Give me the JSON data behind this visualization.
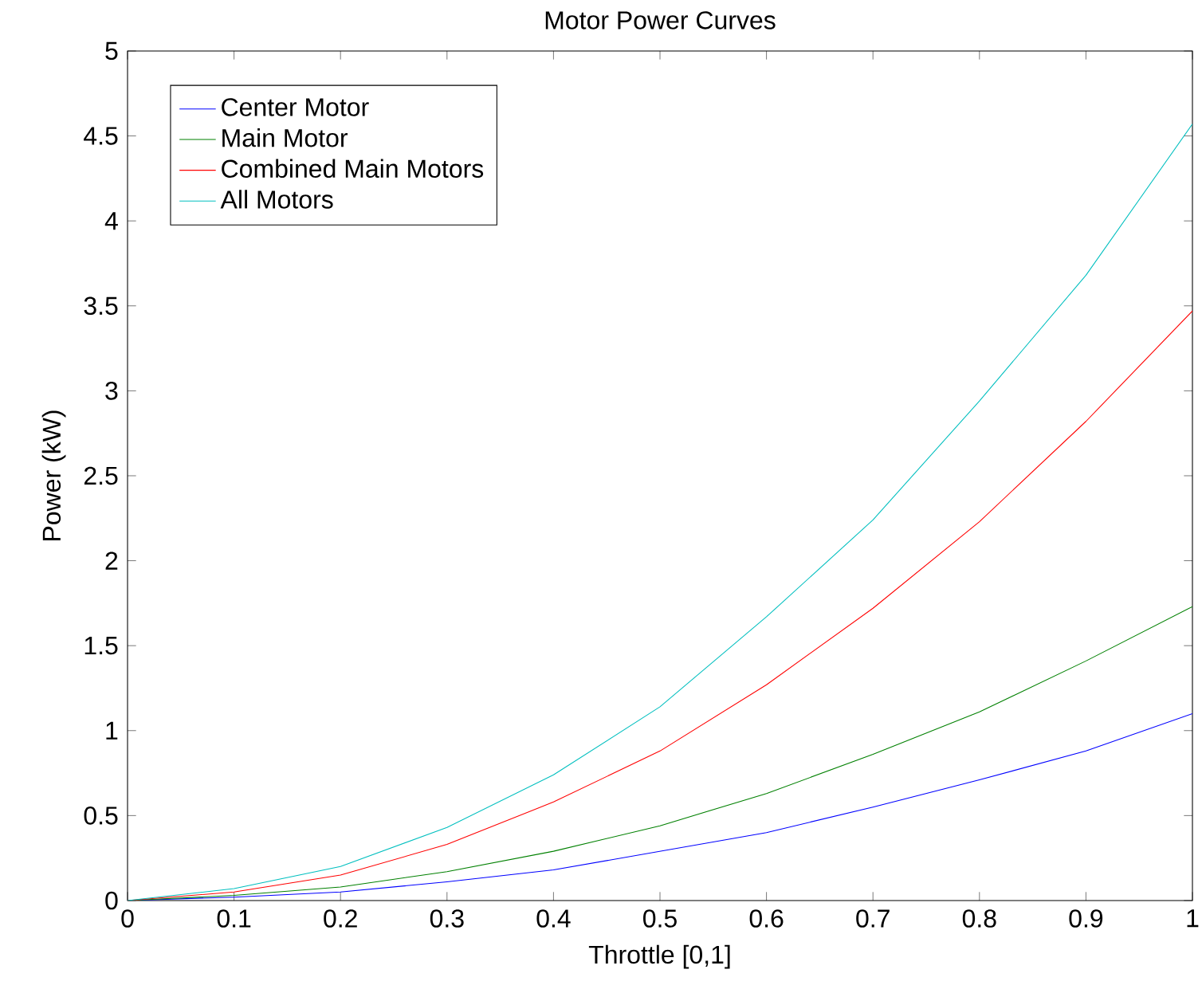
{
  "chart_data": {
    "type": "line",
    "title": "Motor Power Curves",
    "xlabel": "Throttle [0,1]",
    "ylabel": "Power (kW)",
    "x": [
      0,
      0.1,
      0.2,
      0.3,
      0.4,
      0.5,
      0.6,
      0.7,
      0.8,
      0.9,
      1
    ],
    "series": [
      {
        "name": "Center Motor",
        "color": "#0000ff",
        "values": [
          0,
          0.02,
          0.05,
          0.11,
          0.18,
          0.29,
          0.4,
          0.55,
          0.71,
          0.88,
          1.1
        ]
      },
      {
        "name": "Main Motor",
        "color": "#008000",
        "values": [
          0,
          0.03,
          0.08,
          0.17,
          0.29,
          0.44,
          0.63,
          0.86,
          1.11,
          1.41,
          1.73
        ]
      },
      {
        "name": "Combined Main Motors",
        "color": "#ff0000",
        "values": [
          0,
          0.05,
          0.15,
          0.33,
          0.58,
          0.88,
          1.27,
          1.72,
          2.23,
          2.82,
          3.47
        ]
      },
      {
        "name": "All Motors",
        "color": "#00bfbf",
        "values": [
          0,
          0.07,
          0.2,
          0.43,
          0.74,
          1.14,
          1.67,
          2.24,
          2.94,
          3.68,
          4.57
        ]
      }
    ],
    "xlim": [
      0,
      1
    ],
    "ylim": [
      0,
      5
    ],
    "xticks": [
      0,
      0.1,
      0.2,
      0.3,
      0.4,
      0.5,
      0.6,
      0.7,
      0.8,
      0.9,
      1
    ],
    "yticks": [
      0,
      0.5,
      1,
      1.5,
      2,
      2.5,
      3,
      3.5,
      4,
      4.5,
      5
    ],
    "legend": "top left",
    "grid": false,
    "marker": "none",
    "line_style": "solid"
  }
}
